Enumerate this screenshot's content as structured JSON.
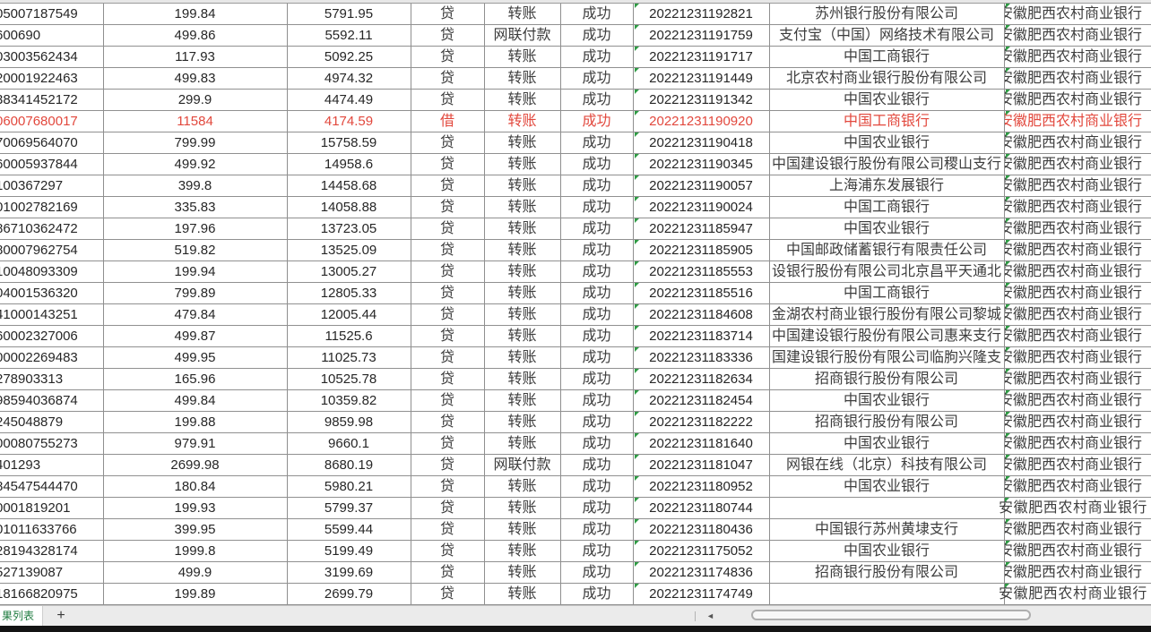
{
  "colors": {
    "highlight_red": "#e2483d",
    "sheet_tab_green": "#1e7b3f",
    "error_triangle_green": "#2e9b44",
    "gridline_gray": "#8f8f8f"
  },
  "sheet_tabs": {
    "active_tab_label": "果列表",
    "add_tab_label": "+"
  },
  "scrollbar": {
    "left_arrow": "◄"
  },
  "table": {
    "rows": [
      {
        "account": "05007187549",
        "amount": "199.84",
        "balance": "5791.95",
        "type": "贷",
        "method": "转账",
        "status": "成功",
        "time": "20221231192821",
        "bank": "苏州银行股份有限公司",
        "holder_bank": "安徽肥西农村商业银行",
        "red": false
      },
      {
        "account": "600690",
        "amount": "499.86",
        "balance": "5592.11",
        "type": "贷",
        "method": "网联付款",
        "status": "成功",
        "time": "20221231191759",
        "bank": "支付宝（中国）网络技术有限公司",
        "holder_bank": "安徽肥西农村商业银行",
        "red": false
      },
      {
        "account": "03003562434",
        "amount": "117.93",
        "balance": "5092.25",
        "type": "贷",
        "method": "转账",
        "status": "成功",
        "time": "20221231191717",
        "bank": "中国工商银行",
        "holder_bank": "安徽肥西农村商业银行",
        "red": false
      },
      {
        "account": "20001922463",
        "amount": "499.83",
        "balance": "4974.32",
        "type": "贷",
        "method": "转账",
        "status": "成功",
        "time": "20221231191449",
        "bank": "北京农村商业银行股份有限公司",
        "holder_bank": "安徽肥西农村商业银行",
        "red": false
      },
      {
        "account": "38341452172",
        "amount": "299.9",
        "balance": "4474.49",
        "type": "贷",
        "method": "转账",
        "status": "成功",
        "time": "20221231191342",
        "bank": "中国农业银行",
        "holder_bank": "安徽肥西农村商业银行",
        "red": false
      },
      {
        "account": "06007680017",
        "amount": "11584",
        "balance": "4174.59",
        "type": "借",
        "method": "转账",
        "status": "成功",
        "time": "20221231190920",
        "bank": "中国工商银行",
        "holder_bank": "安徽肥西农村商业银行",
        "red": true
      },
      {
        "account": "70069564070",
        "amount": "799.99",
        "balance": "15758.59",
        "type": "贷",
        "method": "转账",
        "status": "成功",
        "time": "20221231190418",
        "bank": "中国农业银行",
        "holder_bank": "安徽肥西农村商业银行",
        "red": false
      },
      {
        "account": "60005937844",
        "amount": "499.92",
        "balance": "14958.6",
        "type": "贷",
        "method": "转账",
        "status": "成功",
        "time": "20221231190345",
        "bank": "中国建设银行股份有限公司稷山支行",
        "holder_bank": "安徽肥西农村商业银行",
        "red": false
      },
      {
        "account": "100367297",
        "amount": "399.8",
        "balance": "14458.68",
        "type": "贷",
        "method": "转账",
        "status": "成功",
        "time": "20221231190057",
        "bank": "上海浦东发展银行",
        "holder_bank": "安徽肥西农村商业银行",
        "red": false
      },
      {
        "account": "01002782169",
        "amount": "335.83",
        "balance": "14058.88",
        "type": "贷",
        "method": "转账",
        "status": "成功",
        "time": "20221231190024",
        "bank": "中国工商银行",
        "holder_bank": "安徽肥西农村商业银行",
        "red": false
      },
      {
        "account": "86710362472",
        "amount": "197.96",
        "balance": "13723.05",
        "type": "贷",
        "method": "转账",
        "status": "成功",
        "time": "20221231185947",
        "bank": "中国农业银行",
        "holder_bank": "安徽肥西农村商业银行",
        "red": false
      },
      {
        "account": "80007962754",
        "amount": "519.82",
        "balance": "13525.09",
        "type": "贷",
        "method": "转账",
        "status": "成功",
        "time": "20221231185905",
        "bank": "中国邮政储蓄银行有限责任公司",
        "holder_bank": "安徽肥西农村商业银行",
        "red": false
      },
      {
        "account": "10048093309",
        "amount": "199.94",
        "balance": "13005.27",
        "type": "贷",
        "method": "转账",
        "status": "成功",
        "time": "20221231185553",
        "bank": "设银行股份有限公司北京昌平天通北",
        "holder_bank": "安徽肥西农村商业银行",
        "red": false
      },
      {
        "account": "04001536320",
        "amount": "799.89",
        "balance": "12805.33",
        "type": "贷",
        "method": "转账",
        "status": "成功",
        "time": "20221231185516",
        "bank": "中国工商银行",
        "holder_bank": "安徽肥西农村商业银行",
        "red": false
      },
      {
        "account": "41000143251",
        "amount": "479.84",
        "balance": "12005.44",
        "type": "贷",
        "method": "转账",
        "status": "成功",
        "time": "20221231184608",
        "bank": "金湖农村商业银行股份有限公司黎城",
        "holder_bank": "安徽肥西农村商业银行",
        "red": false
      },
      {
        "account": "60002327006",
        "amount": "499.87",
        "balance": "11525.6",
        "type": "贷",
        "method": "转账",
        "status": "成功",
        "time": "20221231183714",
        "bank": "中国建设银行股份有限公司惠来支行",
        "holder_bank": "安徽肥西农村商业银行",
        "red": false
      },
      {
        "account": "00002269483",
        "amount": "499.95",
        "balance": "11025.73",
        "type": "贷",
        "method": "转账",
        "status": "成功",
        "time": "20221231183336",
        "bank": "国建设银行股份有限公司临朐兴隆支",
        "holder_bank": "安徽肥西农村商业银行",
        "red": false
      },
      {
        "account": "278903313",
        "amount": "165.96",
        "balance": "10525.78",
        "type": "贷",
        "method": "转账",
        "status": "成功",
        "time": "20221231182634",
        "bank": "招商银行股份有限公司",
        "holder_bank": "安徽肥西农村商业银行",
        "red": false
      },
      {
        "account": "98594036874",
        "amount": "499.84",
        "balance": "10359.82",
        "type": "贷",
        "method": "转账",
        "status": "成功",
        "time": "20221231182454",
        "bank": "中国农业银行",
        "holder_bank": "安徽肥西农村商业银行",
        "red": false
      },
      {
        "account": "245048879",
        "amount": "199.88",
        "balance": "9859.98",
        "type": "贷",
        "method": "转账",
        "status": "成功",
        "time": "20221231182222",
        "bank": "招商银行股份有限公司",
        "holder_bank": "安徽肥西农村商业银行",
        "red": false
      },
      {
        "account": "00080755273",
        "amount": "979.91",
        "balance": "9660.1",
        "type": "贷",
        "method": "转账",
        "status": "成功",
        "time": "20221231181640",
        "bank": "中国农业银行",
        "holder_bank": "安徽肥西农村商业银行",
        "red": false
      },
      {
        "account": "401293",
        "amount": "2699.98",
        "balance": "8680.19",
        "type": "贷",
        "method": "网联付款",
        "status": "成功",
        "time": "20221231181047",
        "bank": "网银在线（北京）科技有限公司",
        "holder_bank": "安徽肥西农村商业银行",
        "red": false
      },
      {
        "account": "84547544470",
        "amount": "180.84",
        "balance": "5980.21",
        "type": "贷",
        "method": "转账",
        "status": "成功",
        "time": "20221231180952",
        "bank": "中国农业银行",
        "holder_bank": "安徽肥西农村商业银行",
        "red": false
      },
      {
        "account": "0001819201",
        "amount": "199.93",
        "balance": "5799.37",
        "type": "贷",
        "method": "转账",
        "status": "成功",
        "time": "20221231180744",
        "bank": "",
        "holder_bank": "安徽肥西农村商业银行",
        "red": false
      },
      {
        "account": "01011633766",
        "amount": "399.95",
        "balance": "5599.44",
        "type": "贷",
        "method": "转账",
        "status": "成功",
        "time": "20221231180436",
        "bank": "中国银行苏州黄埭支行",
        "holder_bank": "安徽肥西农村商业银行",
        "red": false
      },
      {
        "account": "28194328174",
        "amount": "1999.8",
        "balance": "5199.49",
        "type": "贷",
        "method": "转账",
        "status": "成功",
        "time": "20221231175052",
        "bank": "中国农业银行",
        "holder_bank": "安徽肥西农村商业银行",
        "red": false
      },
      {
        "account": "527139087",
        "amount": "499.9",
        "balance": "3199.69",
        "type": "贷",
        "method": "转账",
        "status": "成功",
        "time": "20221231174836",
        "bank": "招商银行股份有限公司",
        "holder_bank": "安徽肥西农村商业银行",
        "red": false
      },
      {
        "account": "18166820975",
        "amount": "199.89",
        "balance": "2699.79",
        "type": "贷",
        "method": "转账",
        "status": "成功",
        "time": "20221231174749",
        "bank": "",
        "holder_bank": "安徽肥西农村商业银行",
        "red": false
      }
    ]
  }
}
